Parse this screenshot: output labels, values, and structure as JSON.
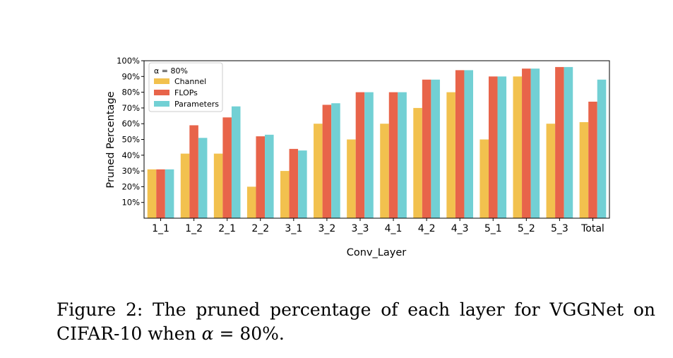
{
  "chart_data": {
    "type": "bar",
    "title": "",
    "xlabel": "Conv_Layer",
    "ylabel": "Pruned Percentage",
    "ylim": [
      0,
      100
    ],
    "yticks": [
      10,
      20,
      30,
      40,
      50,
      60,
      70,
      80,
      90,
      100
    ],
    "ytick_labels": [
      "10%",
      "20%",
      "30%",
      "40%",
      "50%",
      "60%",
      "70%",
      "80%",
      "90%",
      "100%"
    ],
    "categories": [
      "1_1",
      "1_2",
      "2_1",
      "2_2",
      "3_1",
      "3_2",
      "3_3",
      "4_1",
      "4_2",
      "4_3",
      "5_1",
      "5_2",
      "5_3",
      "Total"
    ],
    "legend_title": "α = 80%",
    "legend_position": "top-left",
    "grid": false,
    "series": [
      {
        "name": "Channel",
        "color": "#f2c14e",
        "values": [
          31,
          41,
          41,
          20,
          30,
          60,
          50,
          60,
          70,
          80,
          50,
          90,
          60,
          61
        ]
      },
      {
        "name": "FLOPs",
        "color": "#e8644a",
        "values": [
          31,
          59,
          64,
          52,
          44,
          72,
          80,
          80,
          88,
          94,
          90,
          95,
          96,
          74
        ]
      },
      {
        "name": "Parameters",
        "color": "#72d0d4",
        "values": [
          31,
          51,
          71,
          53,
          43,
          73,
          80,
          80,
          88,
          94,
          90,
          95,
          96,
          88
        ]
      }
    ]
  },
  "caption": {
    "prefix": "Figure 2:   The pruned percentage of each layer for VGGNet on CIFAR-10 when ",
    "symbol": "α",
    "equals": " = ",
    "value": "80%."
  }
}
